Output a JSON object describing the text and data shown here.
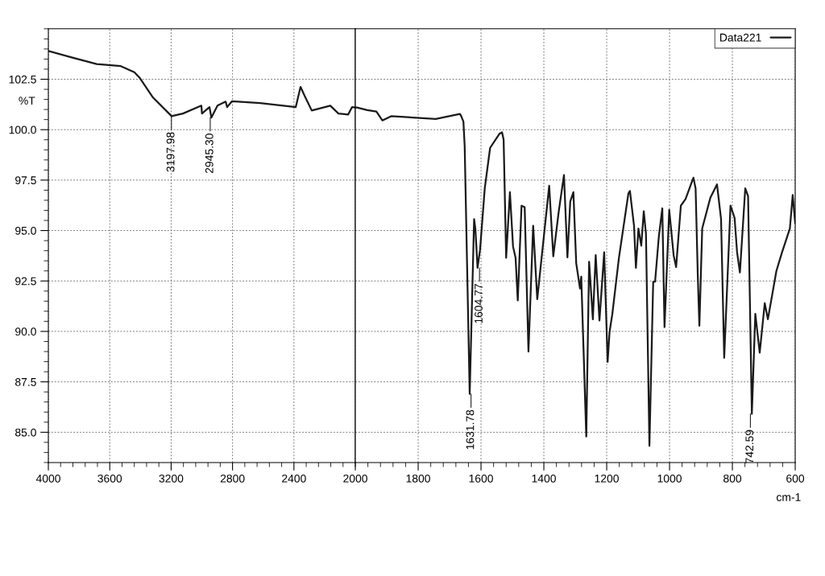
{
  "chart_data": [
    {
      "type": "line",
      "ylabel": "%T",
      "xlim": [
        4000,
        2000
      ],
      "xticks": [
        4000,
        3600,
        3200,
        2800,
        2400,
        2000
      ],
      "ylim": [
        83.5,
        105
      ],
      "yticks": [
        {
          "value": 85,
          "label": "85.0"
        },
        87.5,
        {
          "value": 90,
          "label": "90.0"
        },
        92.5,
        {
          "value": 95,
          "label": "95.0"
        },
        97.5,
        {
          "value": 100,
          "label": "100.0"
        },
        102.5
      ],
      "grid": true,
      "legend": false,
      "series": [
        {
          "color": "#1a1a1a",
          "x": [
            4000,
            3843,
            3685,
            3528,
            3440,
            3406,
            3318,
            3197,
            3123,
            3003,
            2999,
            2950,
            2938,
            2898,
            2845,
            2835,
            2803,
            2620,
            2388,
            2357,
            2330,
            2284,
            2163,
            2110,
            2047,
            2021,
            2000
          ],
          "values": [
            103.9,
            103.57,
            103.25,
            103.15,
            102.85,
            102.58,
            101.59,
            100.67,
            100.8,
            101.19,
            100.8,
            101.12,
            100.6,
            101.19,
            101.39,
            101.12,
            101.41,
            101.32,
            101.12,
            102.12,
            101.67,
            100.95,
            101.19,
            100.8,
            100.75,
            101.12,
            101.1
          ]
        }
      ],
      "annotations": [
        {
          "text": "3197.98",
          "x": 3197.98,
          "y": 100.67
        },
        {
          "text": "2945.30",
          "x": 2945.3,
          "y": 100.6
        }
      ]
    },
    {
      "type": "line",
      "xlabel": "cm-1",
      "xlim": [
        2000,
        600
      ],
      "xticks": [
        1800,
        1600,
        1400,
        1200,
        1000,
        800,
        600
      ],
      "ylim": [
        83.5,
        105
      ],
      "yticks": [
        85,
        87.5,
        90,
        92.5,
        95,
        97.5,
        100,
        102.5
      ],
      "tick_labels": "x",
      "grid": true,
      "legend": "top right",
      "series": [
        {
          "name": "Data221",
          "color": "#1a1a1a",
          "x": [
            2000,
            1995,
            1962,
            1933,
            1914,
            1886,
            1744,
            1667,
            1663,
            1656,
            1652,
            1636,
            1622,
            1618,
            1611,
            1603,
            1588,
            1571,
            1541,
            1533,
            1528,
            1520,
            1508,
            1498,
            1490,
            1483,
            1471,
            1461,
            1449,
            1434,
            1421,
            1383,
            1370,
            1353,
            1336,
            1325,
            1316,
            1306,
            1297,
            1285,
            1281,
            1265,
            1256,
            1244,
            1235,
            1223,
            1208,
            1197,
            1191,
            1182,
            1161,
            1131,
            1126,
            1113,
            1107,
            1099,
            1090,
            1082,
            1075,
            1064,
            1052,
            1046,
            1034,
            1023,
            1016,
            1001,
            987,
            979,
            964,
            949,
            924,
            917,
            910,
            905,
            896,
            870,
            849,
            836,
            826,
            806,
            793,
            785,
            776,
            759,
            750,
            738,
            727,
            713,
            697,
            687,
            660,
            642,
            617,
            608,
            600
          ],
          "values": [
            101.1,
            101.1,
            100.97,
            100.9,
            100.46,
            100.67,
            100.53,
            100.78,
            100.67,
            100.4,
            99.2,
            86.9,
            95.57,
            95.1,
            93.15,
            94.05,
            97.1,
            99.1,
            99.8,
            99.87,
            99.5,
            93.65,
            96.9,
            94.2,
            93.65,
            91.54,
            96.23,
            96.16,
            89.0,
            95.24,
            91.6,
            97.22,
            93.72,
            95.9,
            97.75,
            93.67,
            96.43,
            96.9,
            93.38,
            92.13,
            92.72,
            84.79,
            93.45,
            90.6,
            93.78,
            90.54,
            93.92,
            88.49,
            89.95,
            90.87,
            93.65,
            96.83,
            96.96,
            95.24,
            93.15,
            95.1,
            94.25,
            95.96,
            94.84,
            84.33,
            92.46,
            92.46,
            94.71,
            96.1,
            90.21,
            96.03,
            93.78,
            93.19,
            96.23,
            96.56,
            97.62,
            97.09,
            92.72,
            90.28,
            95.1,
            96.63,
            97.29,
            95.57,
            88.69,
            96.23,
            95.63,
            93.92,
            92.92,
            97.09,
            96.7,
            85.91,
            90.87,
            88.95,
            91.4,
            90.6,
            92.99,
            93.92,
            95.1,
            96.76,
            95.37
          ]
        }
      ],
      "annotations": [
        {
          "text": "1631.78",
          "x": 1631.78,
          "y": 86.9
        },
        {
          "text": "1604.77",
          "x": 1604.77,
          "y": 93.15
        },
        {
          "text": "742.59",
          "x": 742.59,
          "y": 85.91
        }
      ]
    }
  ]
}
